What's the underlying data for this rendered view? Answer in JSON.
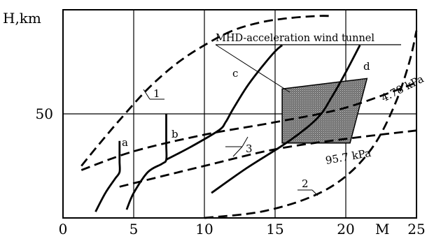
{
  "chart_data": {
    "type": "line",
    "title": "",
    "xlabel": "M",
    "ylabel": "H,km",
    "xlim": [
      0,
      25
    ],
    "ylim": [
      0,
      100
    ],
    "xticks": [
      0,
      5,
      10,
      15,
      20,
      25
    ],
    "yticks": [
      50
    ],
    "grid": true,
    "annotations": {
      "tunnel_label": "MHD-acceleration wind tunnel",
      "pressure_low": "4.78 kPa",
      "pressure_high": "95.7 kPa"
    },
    "series": [
      {
        "name": "1",
        "style": "dashed",
        "x": [
          1.3,
          2.5,
          4,
          6,
          8,
          10,
          12,
          14,
          16,
          18,
          19
        ],
        "y": [
          25,
          35,
          47,
          62,
          74,
          83,
          90,
          94,
          96,
          97,
          97
        ]
      },
      {
        "name": "2",
        "style": "dashed",
        "x": [
          10,
          14,
          17.5,
          20,
          22,
          23.5,
          24.5,
          25
        ],
        "y": [
          0,
          3,
          10,
          20,
          35,
          55,
          75,
          90
        ]
      },
      {
        "name": "3",
        "style": "dashed",
        "x": [
          1.3,
          5,
          10,
          15,
          20,
          25
        ],
        "y": [
          23,
          32,
          40,
          46,
          53,
          65
        ]
      },
      {
        "name": "",
        "style": "dashed",
        "x": [
          4,
          10,
          15,
          20,
          25
        ],
        "y": [
          15,
          25,
          33,
          38,
          42
        ]
      },
      {
        "name": "a",
        "style": "solid",
        "x": [
          2.3,
          3,
          3.7,
          4,
          4,
          4,
          4
        ],
        "y": [
          3,
          12,
          19,
          22,
          27,
          32,
          37
        ]
      },
      {
        "name": "b",
        "style": "solid",
        "x": [
          4.5,
          5,
          6,
          7,
          7.3,
          7.3,
          7.3,
          7.3
        ],
        "y": [
          4,
          12,
          22,
          26,
          28,
          35,
          42,
          50
        ]
      },
      {
        "name": "c",
        "style": "solid",
        "x": [
          7.3,
          9,
          11,
          11.5,
          12,
          13,
          14,
          15,
          15.5
        ],
        "y": [
          28,
          34,
          42,
          46,
          52,
          63,
          72,
          80,
          83
        ]
      },
      {
        "name": "d",
        "style": "solid",
        "x": [
          10.5,
          13,
          16,
          18,
          19,
          20,
          21
        ],
        "y": [
          12,
          24,
          37,
          48,
          58,
          70,
          83
        ]
      }
    ],
    "shaded_region": {
      "name": "MHD-acceleration wind tunnel",
      "x": [
        15.5,
        21.5,
        20.3,
        15.5
      ],
      "y": [
        62,
        67,
        36,
        36
      ]
    }
  }
}
